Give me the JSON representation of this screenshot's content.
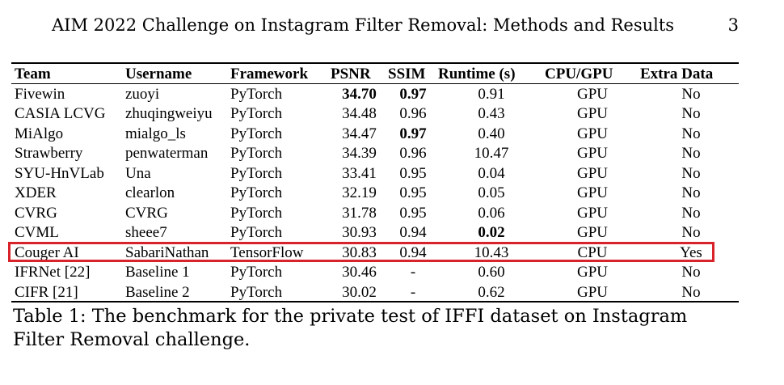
{
  "running_head": {
    "title": "AIM 2022 Challenge on Instagram Filter Removal: Methods and Results",
    "page_number": "3"
  },
  "table": {
    "columns": [
      "Team",
      "Username",
      "Framework",
      "PSNR",
      "SSIM",
      "Runtime (s)",
      "CPU/GPU",
      "Extra Data"
    ],
    "rows": [
      {
        "team": "Fivewin",
        "username": "zuoyi",
        "framework": "PyTorch",
        "psnr": "34.70",
        "ssim": "0.97",
        "runtime": "0.91",
        "device": "GPU",
        "extra": "No"
      },
      {
        "team": "CASIA LCVG",
        "username": "zhuqingweiyu",
        "framework": "PyTorch",
        "psnr": "34.48",
        "ssim": "0.96",
        "runtime": "0.43",
        "device": "GPU",
        "extra": "No"
      },
      {
        "team": "MiAlgo",
        "username": "mialgo_ls",
        "framework": "PyTorch",
        "psnr": "34.47",
        "ssim": "0.97",
        "runtime": "0.40",
        "device": "GPU",
        "extra": "No"
      },
      {
        "team": "Strawberry",
        "username": "penwaterman",
        "framework": "PyTorch",
        "psnr": "34.39",
        "ssim": "0.96",
        "runtime": "10.47",
        "device": "GPU",
        "extra": "No"
      },
      {
        "team": "SYU-HnVLab",
        "username": "Una",
        "framework": "PyTorch",
        "psnr": "33.41",
        "ssim": "0.95",
        "runtime": "0.04",
        "device": "GPU",
        "extra": "No"
      },
      {
        "team": "XDER",
        "username": "clearlon",
        "framework": "PyTorch",
        "psnr": "32.19",
        "ssim": "0.95",
        "runtime": "0.05",
        "device": "GPU",
        "extra": "No"
      },
      {
        "team": "CVRG",
        "username": "CVRG",
        "framework": "PyTorch",
        "psnr": "31.78",
        "ssim": "0.95",
        "runtime": "0.06",
        "device": "GPU",
        "extra": "No"
      },
      {
        "team": "CVML",
        "username": "sheee7",
        "framework": "PyTorch",
        "psnr": "30.93",
        "ssim": "0.94",
        "runtime": "0.02",
        "device": "GPU",
        "extra": "No"
      },
      {
        "team": "Couger AI",
        "username": "SabariNathan",
        "framework": "TensorFlow",
        "psnr": "30.83",
        "ssim": "0.94",
        "runtime": "10.43",
        "device": "CPU",
        "extra": "Yes"
      },
      {
        "team": "IFRNet [22]",
        "username": "Baseline 1",
        "framework": "PyTorch",
        "psnr": "30.46",
        "ssim": "-",
        "runtime": "0.60",
        "device": "GPU",
        "extra": "No"
      },
      {
        "team": "CIFR [21]",
        "username": "Baseline 2",
        "framework": "PyTorch",
        "psnr": "30.02",
        "ssim": "-",
        "runtime": "0.62",
        "device": "GPU",
        "extra": "No"
      }
    ],
    "bold_cells": [
      "0.psnr",
      "0.ssim",
      "2.ssim",
      "7.runtime"
    ],
    "highlighted_row": 8,
    "highlight_color": "#d9232a"
  },
  "caption": "Table 1: The benchmark for the private test of IFFI dataset on Instagram Filter Removal challenge."
}
